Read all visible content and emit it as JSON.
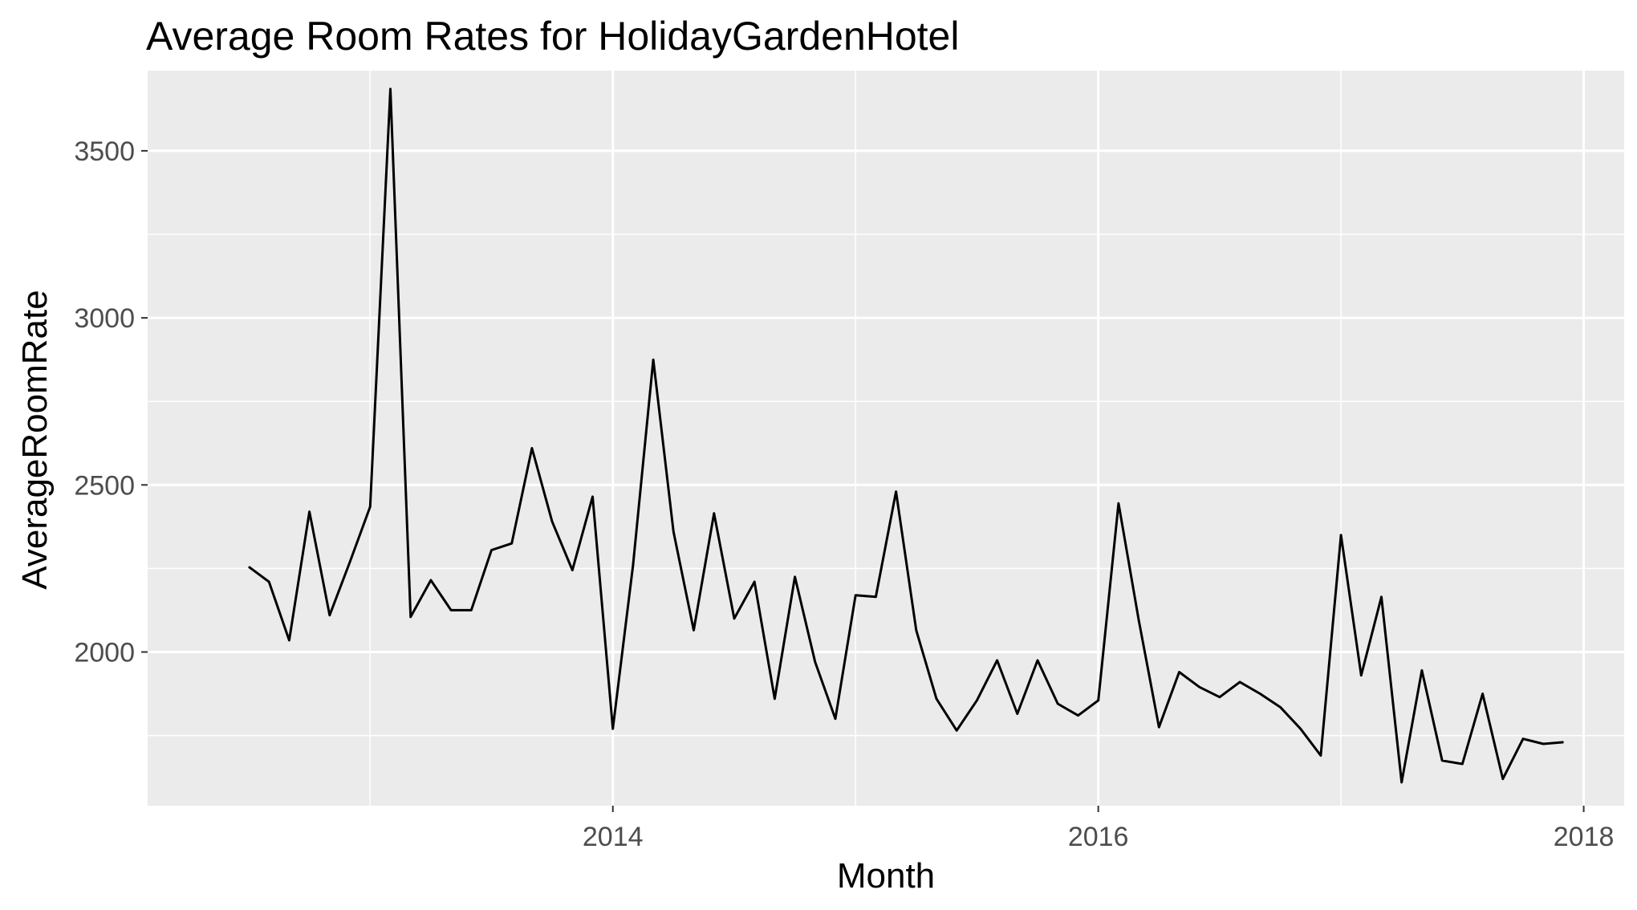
{
  "chart_data": {
    "type": "line",
    "title": "Average Room Rates for HolidayGardenHotel",
    "xlabel": "Month",
    "ylabel": "AverageRoomRate",
    "x_ticks": [
      "2014",
      "2016",
      "2018"
    ],
    "y_ticks": [
      "2000",
      "2500",
      "3000",
      "3500"
    ],
    "ylim": [
      1540,
      3740
    ],
    "xlim": [
      "2012-02-01",
      "2018-03-01"
    ],
    "grid": true,
    "background": "#EBEBEB",
    "line_color": "#000000",
    "series": [
      {
        "x": [
          "2012-07",
          "2012-08",
          "2012-09",
          "2012-10",
          "2012-11",
          "2012-12",
          "2013-01",
          "2013-02",
          "2013-03",
          "2013-04",
          "2013-05",
          "2013-06",
          "2013-07",
          "2013-08",
          "2013-09",
          "2013-10",
          "2013-11",
          "2013-12",
          "2014-01",
          "2014-02",
          "2014-03",
          "2014-04",
          "2014-05",
          "2014-06",
          "2014-07",
          "2014-08",
          "2014-09",
          "2014-10",
          "2014-11",
          "2014-12",
          "2015-01",
          "2015-02",
          "2015-03",
          "2015-04",
          "2015-05",
          "2015-06",
          "2015-07",
          "2015-08",
          "2015-09",
          "2015-10",
          "2015-11",
          "2015-12",
          "2016-01",
          "2016-02",
          "2016-03",
          "2016-04",
          "2016-05",
          "2016-06",
          "2016-07",
          "2016-08",
          "2016-09",
          "2016-10",
          "2016-11",
          "2016-12",
          "2017-01",
          "2017-02",
          "2017-03",
          "2017-04",
          "2017-05",
          "2017-06",
          "2017-07",
          "2017-08",
          "2017-09",
          "2017-10",
          "2017-11",
          "2017-12"
        ],
        "values": [
          2255,
          2210,
          2035,
          2420,
          2110,
          2270,
          2435,
          3685,
          2105,
          2215,
          2125,
          2125,
          2305,
          2325,
          2610,
          2390,
          2245,
          2465,
          1770,
          2260,
          2875,
          2360,
          2065,
          2415,
          2100,
          2210,
          1860,
          2225,
          1970,
          1800,
          2170,
          2165,
          2480,
          2065,
          1860,
          1765,
          1855,
          1975,
          1815,
          1975,
          1845,
          1810,
          1855,
          2445,
          2095,
          1775,
          1940,
          1895,
          1865,
          1910,
          1875,
          1835,
          1770,
          1690,
          2350,
          1930,
          2165,
          1610,
          1945,
          1675,
          1665,
          1875,
          1620,
          1740,
          1725,
          1730
        ]
      }
    ]
  }
}
